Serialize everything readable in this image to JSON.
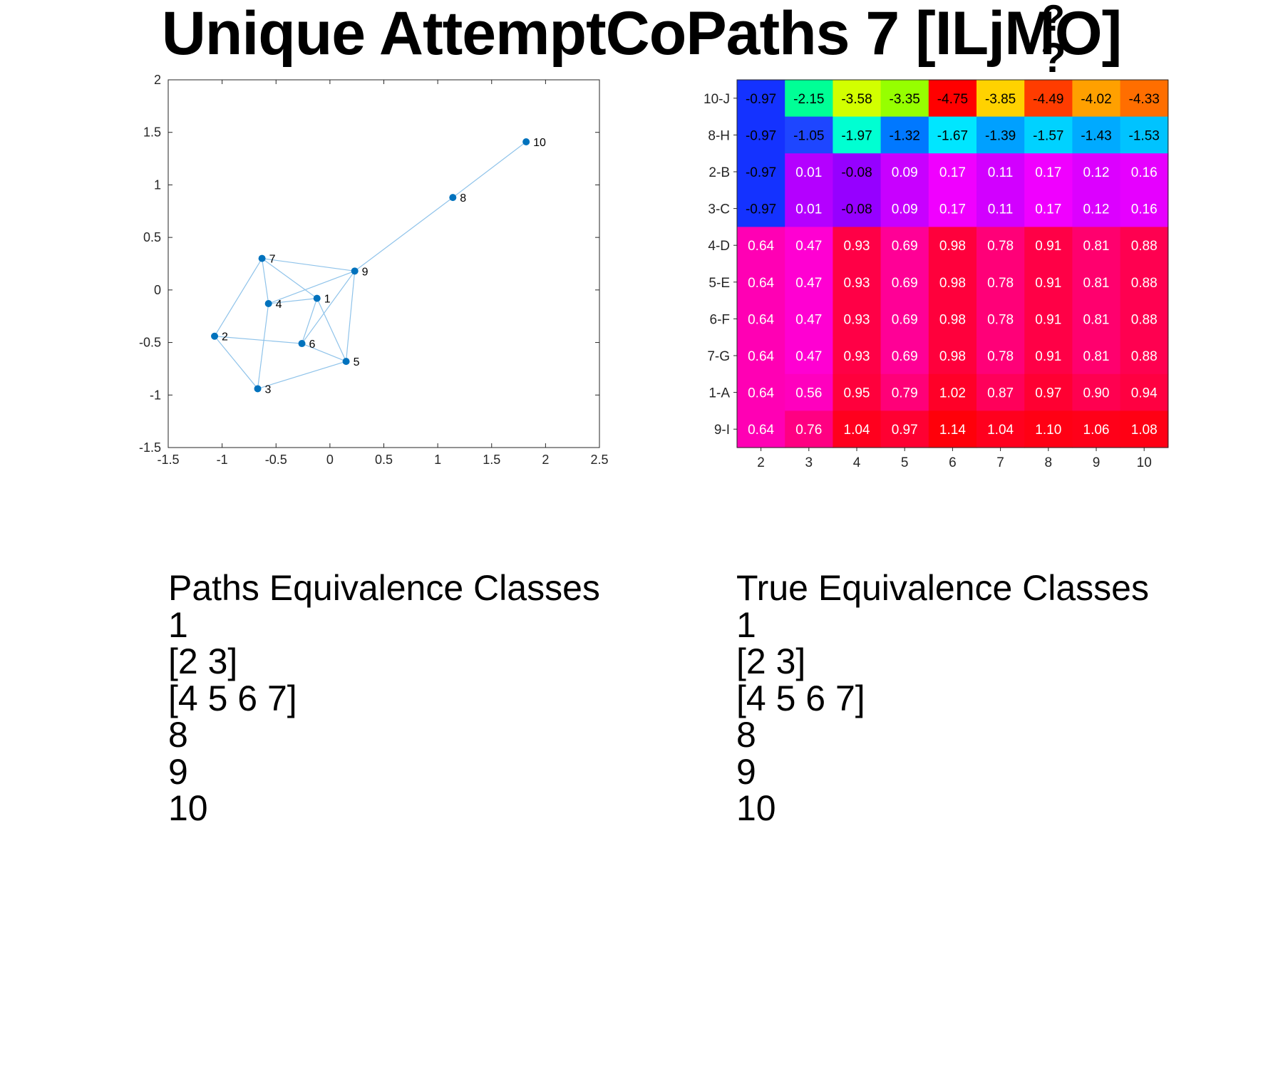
{
  "title": "Unique AttemptCoPaths 7 [ILjM",
  "title_tail": "O]",
  "title_glyph_upper": "?",
  "title_glyph_lower": "?",
  "chart_data": [
    {
      "type": "scatter",
      "title": "",
      "xlabel": "",
      "ylabel": "",
      "xlim": [
        -1.5,
        2.5
      ],
      "ylim": [
        -1.5,
        2
      ],
      "x_ticks": [
        "-1.5",
        "-1",
        "-0.5",
        "0",
        "0.5",
        "1",
        "1.5",
        "2",
        "2.5"
      ],
      "y_ticks": [
        "-1.5",
        "-1",
        "-0.5",
        "0",
        "0.5",
        "1",
        "1.5",
        "2"
      ],
      "grid": false,
      "point_color": "#0072BD",
      "edge_color": "#8fc3ea",
      "nodes": [
        {
          "label": "1",
          "x": -0.12,
          "y": -0.08
        },
        {
          "label": "2",
          "x": -1.07,
          "y": -0.44
        },
        {
          "label": "3",
          "x": -0.67,
          "y": -0.94
        },
        {
          "label": "4",
          "x": -0.57,
          "y": -0.13
        },
        {
          "label": "5",
          "x": 0.15,
          "y": -0.68
        },
        {
          "label": "6",
          "x": -0.26,
          "y": -0.51
        },
        {
          "label": "7",
          "x": -0.63,
          "y": 0.3
        },
        {
          "label": "8",
          "x": 1.14,
          "y": 0.88
        },
        {
          "label": "9",
          "x": 0.23,
          "y": 0.18
        },
        {
          "label": "10",
          "x": 1.82,
          "y": 1.41
        }
      ],
      "edges": [
        [
          7,
          2
        ],
        [
          7,
          4
        ],
        [
          7,
          9
        ],
        [
          7,
          1
        ],
        [
          4,
          1
        ],
        [
          4,
          3
        ],
        [
          4,
          9
        ],
        [
          2,
          6
        ],
        [
          2,
          3
        ],
        [
          3,
          5
        ],
        [
          6,
          5
        ],
        [
          6,
          1
        ],
        [
          6,
          9
        ],
        [
          1,
          5
        ],
        [
          9,
          5
        ],
        [
          9,
          8
        ],
        [
          8,
          10
        ]
      ]
    },
    {
      "type": "heatmap",
      "title": "",
      "columns": [
        "2",
        "3",
        "4",
        "5",
        "6",
        "7",
        "8",
        "9",
        "10"
      ],
      "rows": [
        "10-J",
        "8-H",
        "2-B",
        "3-C",
        "4-D",
        "5-E",
        "6-F",
        "7-G",
        "1-A",
        "9-I"
      ],
      "values": [
        [
          "-0.97",
          "-2.15",
          "-3.58",
          "-3.35",
          "-4.75",
          "-3.85",
          "-4.49",
          "-4.02",
          "-4.33"
        ],
        [
          "-0.97",
          "-1.05",
          "-1.97",
          "-1.32",
          "-1.67",
          "-1.39",
          "-1.57",
          "-1.43",
          "-1.53"
        ],
        [
          "-0.97",
          "0.01",
          "-0.08",
          "0.09",
          "0.17",
          "0.11",
          "0.17",
          "0.12",
          "0.16"
        ],
        [
          "-0.97",
          "0.01",
          "-0.08",
          "0.09",
          "0.17",
          "0.11",
          "0.17",
          "0.12",
          "0.16"
        ],
        [
          "0.64",
          "0.47",
          "0.93",
          "0.69",
          "0.98",
          "0.78",
          "0.91",
          "0.81",
          "0.88"
        ],
        [
          "0.64",
          "0.47",
          "0.93",
          "0.69",
          "0.98",
          "0.78",
          "0.91",
          "0.81",
          "0.88"
        ],
        [
          "0.64",
          "0.47",
          "0.93",
          "0.69",
          "0.98",
          "0.78",
          "0.91",
          "0.81",
          "0.88"
        ],
        [
          "0.64",
          "0.47",
          "0.93",
          "0.69",
          "0.98",
          "0.78",
          "0.91",
          "0.81",
          "0.88"
        ],
        [
          "0.64",
          "0.56",
          "0.95",
          "0.79",
          "1.02",
          "0.87",
          "0.97",
          "0.90",
          "0.94"
        ],
        [
          "0.64",
          "0.76",
          "1.04",
          "0.97",
          "1.14",
          "1.04",
          "1.10",
          "1.06",
          "1.08"
        ]
      ],
      "cell_colors": [
        [
          "#1432ff",
          "#00ff96",
          "#d2ff00",
          "#96ff00",
          "#ff0000",
          "#ffd200",
          "#ff3c00",
          "#ffa000",
          "#ff6e00"
        ],
        [
          "#1432ff",
          "#1e46ff",
          "#00ffd2",
          "#0078ff",
          "#00e6ff",
          "#00a0ff",
          "#00d2ff",
          "#00aaff",
          "#00c3ff"
        ],
        [
          "#1432ff",
          "#b400ff",
          "#9600ff",
          "#c800ff",
          "#f000ff",
          "#d200ff",
          "#f000ff",
          "#dc00ff",
          "#e600ff"
        ],
        [
          "#1432ff",
          "#b400ff",
          "#9600ff",
          "#c800ff",
          "#f000ff",
          "#d200ff",
          "#f000ff",
          "#dc00ff",
          "#e600ff"
        ],
        [
          "#ff00b4",
          "#ff00d2",
          "#ff0046",
          "#ff0096",
          "#ff003c",
          "#ff0078",
          "#ff0046",
          "#ff006e",
          "#ff0050"
        ],
        [
          "#ff00b4",
          "#ff00d2",
          "#ff0046",
          "#ff0096",
          "#ff003c",
          "#ff0078",
          "#ff0046",
          "#ff006e",
          "#ff0050"
        ],
        [
          "#ff00b4",
          "#ff00d2",
          "#ff0046",
          "#ff0096",
          "#ff003c",
          "#ff0078",
          "#ff0046",
          "#ff006e",
          "#ff0050"
        ],
        [
          "#ff00b4",
          "#ff00d2",
          "#ff0046",
          "#ff0096",
          "#ff003c",
          "#ff0078",
          "#ff0046",
          "#ff006e",
          "#ff0050"
        ],
        [
          "#ff00b4",
          "#ff00be",
          "#ff003c",
          "#ff0078",
          "#ff0028",
          "#ff005a",
          "#ff0032",
          "#ff0050",
          "#ff0041"
        ],
        [
          "#ff00b4",
          "#ff0082",
          "#ff001e",
          "#ff0032",
          "#ff000a",
          "#ff001e",
          "#ff0014",
          "#ff0019",
          "#ff0014"
        ]
      ],
      "dark_text_rows": [
        0,
        1
      ],
      "dark_text_first_col": true,
      "dark_text_extra": [
        [
          2,
          2
        ],
        [
          3,
          2
        ]
      ]
    }
  ],
  "paths_classes": {
    "title": "Paths Equivalence Classes",
    "items": [
      "1",
      "[2 3]",
      "[4 5 6 7]",
      "8",
      "9",
      "10"
    ]
  },
  "true_classes": {
    "title": "True Equivalence Classes",
    "items": [
      "1",
      "[2 3]",
      "[4 5 6 7]",
      "8",
      "9",
      "10"
    ]
  }
}
